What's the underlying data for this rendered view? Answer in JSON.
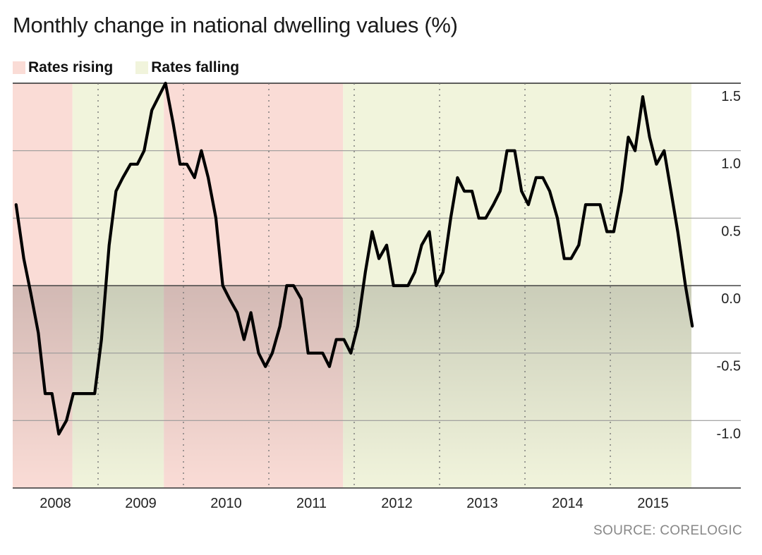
{
  "title": "Monthly change in national dwelling values (%)",
  "source": "SOURCE: CORELOGIC",
  "legend": [
    {
      "label": "Rates rising",
      "color": "#fadcd6"
    },
    {
      "label": "Rates falling",
      "color": "#f1f4dc"
    }
  ],
  "chart_data": {
    "type": "line",
    "title": "Monthly change in national dwelling values (%)",
    "xlabel": "",
    "ylabel": "",
    "ylim": [
      -1.5,
      1.5
    ],
    "xlim": [
      2008.0,
      2015.95
    ],
    "grid": true,
    "legend_position": "top-left",
    "x_ticks": [
      {
        "label": "2008",
        "value": 2008.5
      },
      {
        "label": "2009",
        "value": 2009.5
      },
      {
        "label": "2010",
        "value": 2010.5
      },
      {
        "label": "2011",
        "value": 2011.5
      },
      {
        "label": "2012",
        "value": 2012.5
      },
      {
        "label": "2013",
        "value": 2013.5
      },
      {
        "label": "2014",
        "value": 2014.5
      },
      {
        "label": "2015",
        "value": 2015.5
      }
    ],
    "y_ticks": [
      {
        "label": "1.5",
        "value": 1.5
      },
      {
        "label": "1.0",
        "value": 1.0
      },
      {
        "label": "0.5",
        "value": 0.5
      },
      {
        "label": "0.0",
        "value": 0.0
      },
      {
        "label": "-0.5",
        "value": -0.5
      },
      {
        "label": "-1.0",
        "value": -1.0
      }
    ],
    "shaded_periods": [
      {
        "label": "Rates rising",
        "start": 2008.0,
        "end": 2008.7,
        "color": "#fadcd6"
      },
      {
        "label": "Rates falling",
        "start": 2008.7,
        "end": 2009.77,
        "color": "#f1f4dc"
      },
      {
        "label": "Rates rising",
        "start": 2009.77,
        "end": 2011.87,
        "color": "#fadcd6"
      },
      {
        "label": "Rates falling",
        "start": 2011.87,
        "end": 2015.95,
        "color": "#f1f4dc"
      }
    ],
    "line_color": "#000000",
    "series": [
      {
        "values": [
          [
            2008.04,
            0.6
          ],
          [
            2008.13,
            0.2
          ],
          [
            2008.21,
            -0.05
          ],
          [
            2008.3,
            -0.35
          ],
          [
            2008.38,
            -0.8
          ],
          [
            2008.46,
            -0.8
          ],
          [
            2008.54,
            -1.1
          ],
          [
            2008.63,
            -1.0
          ],
          [
            2008.71,
            -0.8
          ],
          [
            2008.79,
            -0.8
          ],
          [
            2008.88,
            -0.8
          ],
          [
            2008.96,
            -0.8
          ],
          [
            2009.04,
            -0.4
          ],
          [
            2009.13,
            0.3
          ],
          [
            2009.21,
            0.7
          ],
          [
            2009.29,
            0.8
          ],
          [
            2009.38,
            0.9
          ],
          [
            2009.46,
            0.9
          ],
          [
            2009.54,
            1.0
          ],
          [
            2009.63,
            1.3
          ],
          [
            2009.71,
            1.4
          ],
          [
            2009.79,
            1.5
          ],
          [
            2009.88,
            1.2
          ],
          [
            2009.96,
            0.9
          ],
          [
            2010.04,
            0.9
          ],
          [
            2010.13,
            0.8
          ],
          [
            2010.21,
            1.0
          ],
          [
            2010.29,
            0.8
          ],
          [
            2010.38,
            0.5
          ],
          [
            2010.46,
            0.0
          ],
          [
            2010.54,
            -0.1
          ],
          [
            2010.63,
            -0.2
          ],
          [
            2010.71,
            -0.4
          ],
          [
            2010.79,
            -0.2
          ],
          [
            2010.88,
            -0.5
          ],
          [
            2010.96,
            -0.6
          ],
          [
            2011.04,
            -0.5
          ],
          [
            2011.13,
            -0.3
          ],
          [
            2011.21,
            0.0
          ],
          [
            2011.29,
            0.0
          ],
          [
            2011.38,
            -0.1
          ],
          [
            2011.46,
            -0.5
          ],
          [
            2011.54,
            -0.5
          ],
          [
            2011.63,
            -0.5
          ],
          [
            2011.71,
            -0.6
          ],
          [
            2011.79,
            -0.4
          ],
          [
            2011.88,
            -0.4
          ],
          [
            2011.96,
            -0.5
          ],
          [
            2012.04,
            -0.3
          ],
          [
            2012.13,
            0.1
          ],
          [
            2012.21,
            0.4
          ],
          [
            2012.29,
            0.2
          ],
          [
            2012.38,
            0.3
          ],
          [
            2012.46,
            0.0
          ],
          [
            2012.54,
            0.0
          ],
          [
            2012.63,
            0.0
          ],
          [
            2012.71,
            0.1
          ],
          [
            2012.79,
            0.3
          ],
          [
            2012.88,
            0.4
          ],
          [
            2012.96,
            0.0
          ],
          [
            2013.04,
            0.1
          ],
          [
            2013.13,
            0.5
          ],
          [
            2013.21,
            0.8
          ],
          [
            2013.29,
            0.7
          ],
          [
            2013.38,
            0.7
          ],
          [
            2013.46,
            0.5
          ],
          [
            2013.54,
            0.5
          ],
          [
            2013.63,
            0.6
          ],
          [
            2013.71,
            0.7
          ],
          [
            2013.79,
            1.0
          ],
          [
            2013.88,
            1.0
          ],
          [
            2013.96,
            0.7
          ],
          [
            2014.04,
            0.6
          ],
          [
            2014.13,
            0.8
          ],
          [
            2014.21,
            0.8
          ],
          [
            2014.29,
            0.7
          ],
          [
            2014.38,
            0.5
          ],
          [
            2014.46,
            0.2
          ],
          [
            2014.54,
            0.2
          ],
          [
            2014.63,
            0.3
          ],
          [
            2014.71,
            0.6
          ],
          [
            2014.79,
            0.6
          ],
          [
            2014.88,
            0.6
          ],
          [
            2014.96,
            0.4
          ],
          [
            2015.04,
            0.4
          ],
          [
            2015.13,
            0.7
          ],
          [
            2015.21,
            1.1
          ],
          [
            2015.29,
            1.0
          ],
          [
            2015.38,
            1.4
          ],
          [
            2015.46,
            1.1
          ],
          [
            2015.54,
            0.9
          ],
          [
            2015.63,
            1.0
          ],
          [
            2015.71,
            0.7
          ],
          [
            2015.79,
            0.4
          ],
          [
            2015.88,
            0.0
          ],
          [
            2015.96,
            -0.3
          ]
        ]
      }
    ]
  }
}
